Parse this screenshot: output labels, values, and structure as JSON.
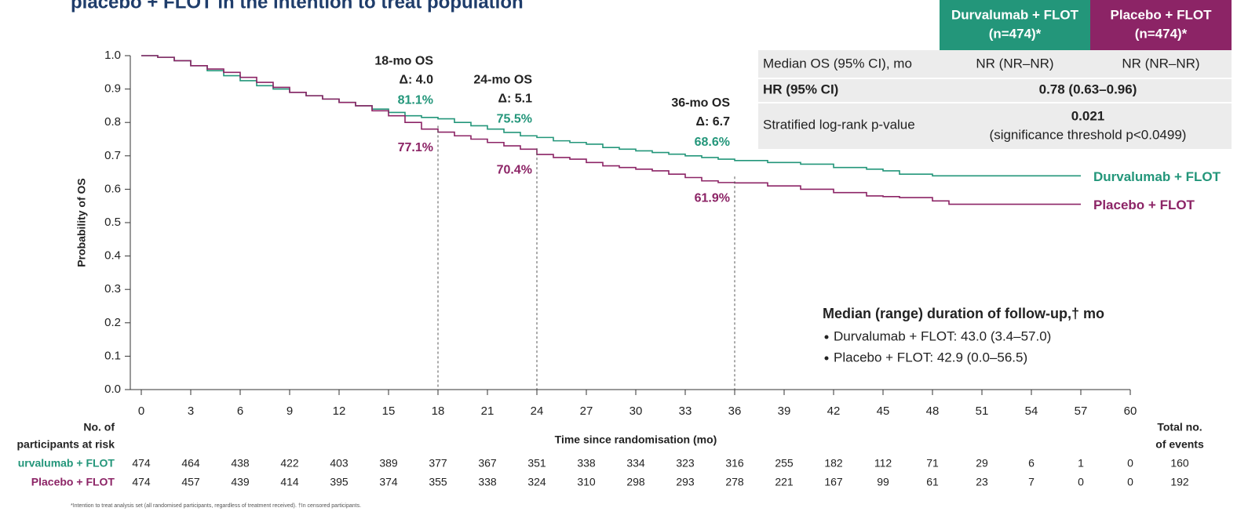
{
  "chart_data": {
    "type": "line",
    "step": true,
    "title": "placebo + FLOT in the intention to treat population",
    "x": [
      0,
      1,
      2,
      3,
      4,
      5,
      6,
      7,
      8,
      9,
      10,
      11,
      12,
      13,
      14,
      15,
      16,
      17,
      18,
      19,
      20,
      21,
      22,
      23,
      24,
      25,
      26,
      27,
      28,
      29,
      30,
      31,
      32,
      33,
      34,
      35,
      36,
      38,
      40,
      42,
      44,
      45,
      46,
      48,
      49,
      57
    ],
    "series": [
      {
        "name": "Durvalumab + FLOT",
        "color": "#23967a",
        "values": [
          1.0,
          0.995,
          0.985,
          0.97,
          0.955,
          0.94,
          0.925,
          0.91,
          0.9,
          0.89,
          0.88,
          0.87,
          0.86,
          0.85,
          0.84,
          0.83,
          0.82,
          0.815,
          0.811,
          0.8,
          0.79,
          0.78,
          0.77,
          0.76,
          0.755,
          0.745,
          0.74,
          0.735,
          0.725,
          0.72,
          0.715,
          0.71,
          0.705,
          0.7,
          0.695,
          0.69,
          0.686,
          0.68,
          0.675,
          0.665,
          0.66,
          0.655,
          0.645,
          0.64,
          0.64,
          0.64
        ]
      },
      {
        "name": "Placebo + FLOT",
        "color": "#8c2466",
        "values": [
          1.0,
          0.995,
          0.985,
          0.97,
          0.96,
          0.95,
          0.935,
          0.92,
          0.905,
          0.89,
          0.88,
          0.87,
          0.86,
          0.85,
          0.835,
          0.82,
          0.8,
          0.78,
          0.771,
          0.76,
          0.75,
          0.74,
          0.73,
          0.72,
          0.704,
          0.695,
          0.69,
          0.68,
          0.67,
          0.665,
          0.66,
          0.655,
          0.645,
          0.635,
          0.625,
          0.62,
          0.619,
          0.61,
          0.6,
          0.59,
          0.58,
          0.578,
          0.575,
          0.565,
          0.555,
          0.555
        ]
      }
    ],
    "xlim": [
      0,
      60
    ],
    "xticks": [
      0,
      3,
      6,
      9,
      12,
      15,
      18,
      21,
      24,
      27,
      30,
      33,
      36,
      39,
      42,
      45,
      48,
      51,
      54,
      57,
      60
    ],
    "ylim": [
      0,
      1
    ],
    "yticks": [
      {
        "value": 0,
        "label": "0.0"
      },
      0.1,
      0.2,
      0.3,
      0.4,
      0.5,
      0.6,
      0.7,
      0.8,
      0.9,
      {
        "value": 1,
        "label": "1.0"
      }
    ],
    "xlabel": "Time since randomisation (mo)",
    "ylabel": "Probability of OS",
    "annotations": [
      {
        "x": 18,
        "label": "18-mo OS",
        "delta": "Δ: 4.0",
        "values": [
          0.811,
          0.771
        ],
        "value_labels": [
          "81.1%",
          "77.1%"
        ]
      },
      {
        "x": 24,
        "label": "24-mo OS",
        "delta": "Δ: 5.1",
        "values": [
          0.755,
          0.704
        ],
        "value_labels": [
          "75.5%",
          "70.4%"
        ]
      },
      {
        "x": 36,
        "label": "36-mo OS",
        "delta": "Δ: 6.7",
        "values": [
          0.686,
          0.619
        ],
        "value_labels": [
          "68.6%",
          "61.9%"
        ]
      }
    ]
  },
  "summary_table": {
    "columns": [
      "Durvalumab + FLOT",
      "Placebo + FLOT"
    ],
    "column_n": [
      "(n=474)*",
      "(n=474)*"
    ],
    "rows": [
      {
        "label": "Median OS (95% CI), mo",
        "cells": [
          "NR (NR–NR)",
          "NR (NR–NR)"
        ]
      },
      {
        "label": "HR (95% CI)",
        "merged": "0.78 (0.63–0.96)"
      },
      {
        "label": "Stratified log-rank p-value",
        "merged": "0.021",
        "note": "(significance threshold p<0.0499)"
      }
    ]
  },
  "follow_up": {
    "heading": "Median (range) duration of follow-up,† mo",
    "items": [
      "Durvalumab + FLOT: 43.0 (3.4–57.0)",
      "Placebo + FLOT: 42.9 (0.0–56.5)"
    ]
  },
  "risk_table": {
    "title_lines": [
      "No. of",
      "participants at risk"
    ],
    "total_lines": [
      "Total no.",
      "of events"
    ],
    "rows": [
      {
        "name": "urvalumab + FLOT",
        "counts": [
          474,
          464,
          438,
          422,
          403,
          389,
          377,
          367,
          351,
          338,
          334,
          323,
          316,
          255,
          182,
          112,
          71,
          29,
          6,
          1,
          0
        ],
        "total": 160
      },
      {
        "name": "Placebo + FLOT",
        "counts": [
          474,
          457,
          439,
          414,
          395,
          374,
          355,
          338,
          324,
          310,
          298,
          293,
          278,
          221,
          167,
          99,
          61,
          23,
          7,
          0,
          0
        ],
        "total": 192
      }
    ]
  },
  "footnote": "*Intention to treat analysis set (all randomised participants, regardless of treatment received). †In censored participants."
}
